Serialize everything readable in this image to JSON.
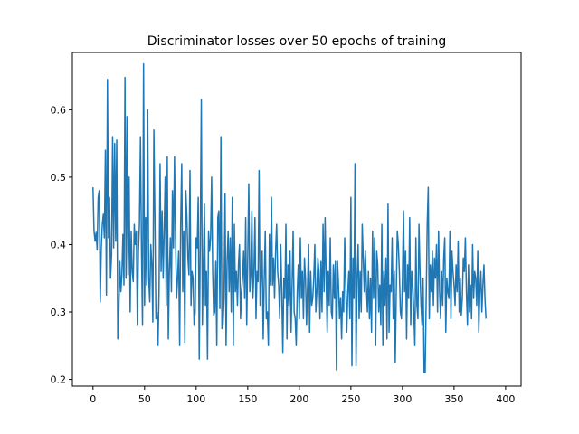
{
  "chart_data": {
    "type": "line",
    "title": "Discriminator losses over 50 epochs of training",
    "xlabel": "",
    "ylabel": "",
    "xlim": [
      -20,
      415
    ],
    "ylim": [
      0.19,
      0.685
    ],
    "x_ticks": [
      0,
      50,
      100,
      150,
      200,
      250,
      300,
      350,
      400
    ],
    "y_ticks": [
      0.2,
      0.3,
      0.4,
      0.5,
      0.6
    ],
    "grid": false,
    "colors": {
      "line": "#1f77b4"
    },
    "series": [
      {
        "x_start": 0,
        "x_step": 1,
        "values": [
          0.485,
          0.42,
          0.405,
          0.418,
          0.392,
          0.47,
          0.48,
          0.315,
          0.395,
          0.43,
          0.445,
          0.41,
          0.54,
          0.325,
          0.645,
          0.41,
          0.47,
          0.35,
          0.385,
          0.56,
          0.395,
          0.55,
          0.405,
          0.555,
          0.26,
          0.3,
          0.375,
          0.33,
          0.355,
          0.415,
          0.34,
          0.648,
          0.35,
          0.59,
          0.355,
          0.5,
          0.3,
          0.42,
          0.36,
          0.345,
          0.43,
          0.4,
          0.42,
          0.28,
          0.39,
          0.43,
          0.56,
          0.39,
          0.28,
          0.668,
          0.31,
          0.44,
          0.34,
          0.6,
          0.35,
          0.315,
          0.4,
          0.37,
          0.285,
          0.57,
          0.44,
          0.29,
          0.3,
          0.25,
          0.33,
          0.52,
          0.36,
          0.45,
          0.35,
          0.42,
          0.5,
          0.31,
          0.53,
          0.26,
          0.36,
          0.41,
          0.33,
          0.48,
          0.395,
          0.53,
          0.41,
          0.32,
          0.35,
          0.39,
          0.25,
          0.43,
          0.52,
          0.33,
          0.42,
          0.255,
          0.48,
          0.44,
          0.38,
          0.355,
          0.51,
          0.31,
          0.36,
          0.35,
          0.28,
          0.3,
          0.41,
          0.395,
          0.47,
          0.23,
          0.41,
          0.615,
          0.28,
          0.37,
          0.46,
          0.31,
          0.36,
          0.23,
          0.42,
          0.39,
          0.41,
          0.5,
          0.36,
          0.295,
          0.3,
          0.375,
          0.25,
          0.44,
          0.45,
          0.305,
          0.56,
          0.275,
          0.28,
          0.32,
          0.475,
          0.25,
          0.375,
          0.42,
          0.33,
          0.41,
          0.3,
          0.47,
          0.25,
          0.43,
          0.33,
          0.36,
          0.31,
          0.37,
          0.4,
          0.29,
          0.33,
          0.35,
          0.39,
          0.32,
          0.44,
          0.28,
          0.38,
          0.49,
          0.33,
          0.355,
          0.45,
          0.32,
          0.36,
          0.44,
          0.29,
          0.36,
          0.345,
          0.51,
          0.31,
          0.35,
          0.39,
          0.26,
          0.35,
          0.42,
          0.29,
          0.3,
          0.25,
          0.415,
          0.34,
          0.47,
          0.34,
          0.38,
          0.32,
          0.39,
          0.43,
          0.36,
          0.34,
          0.29,
          0.4,
          0.33,
          0.24,
          0.35,
          0.32,
          0.43,
          0.26,
          0.37,
          0.31,
          0.39,
          0.27,
          0.34,
          0.42,
          0.3,
          0.29,
          0.25,
          0.33,
          0.37,
          0.29,
          0.41,
          0.32,
          0.36,
          0.29,
          0.38,
          0.35,
          0.28,
          0.34,
          0.4,
          0.27,
          0.36,
          0.31,
          0.32,
          0.35,
          0.4,
          0.3,
          0.33,
          0.38,
          0.36,
          0.29,
          0.375,
          0.3,
          0.43,
          0.33,
          0.44,
          0.35,
          0.27,
          0.36,
          0.31,
          0.41,
          0.3,
          0.29,
          0.37,
          0.32,
          0.375,
          0.214,
          0.375,
          0.34,
          0.29,
          0.32,
          0.26,
          0.33,
          0.3,
          0.41,
          0.34,
          0.27,
          0.33,
          0.36,
          0.29,
          0.47,
          0.22,
          0.38,
          0.32,
          0.52,
          0.22,
          0.35,
          0.4,
          0.29,
          0.36,
          0.3,
          0.43,
          0.38,
          0.33,
          0.39,
          0.34,
          0.3,
          0.36,
          0.29,
          0.35,
          0.27,
          0.42,
          0.32,
          0.41,
          0.25,
          0.39,
          0.37,
          0.3,
          0.34,
          0.28,
          0.43,
          0.25,
          0.36,
          0.31,
          0.38,
          0.26,
          0.46,
          0.27,
          0.34,
          0.33,
          0.41,
          0.29,
          0.36,
          0.225,
          0.33,
          0.42,
          0.4,
          0.36,
          0.3,
          0.29,
          0.35,
          0.45,
          0.33,
          0.39,
          0.26,
          0.37,
          0.32,
          0.44,
          0.28,
          0.36,
          0.34,
          0.3,
          0.25,
          0.41,
          0.31,
          0.29,
          0.43,
          0.36,
          0.31,
          0.28,
          0.35,
          0.21,
          0.21,
          0.32,
          0.43,
          0.485,
          0.29,
          0.37,
          0.33,
          0.39,
          0.31,
          0.38,
          0.35,
          0.4,
          0.3,
          0.42,
          0.33,
          0.29,
          0.36,
          0.31,
          0.38,
          0.41,
          0.27,
          0.35,
          0.33,
          0.32,
          0.42,
          0.29,
          0.39,
          0.36,
          0.34,
          0.31,
          0.37,
          0.33,
          0.405,
          0.3,
          0.35,
          0.295,
          0.32,
          0.38,
          0.36,
          0.41,
          0.33,
          0.28,
          0.37,
          0.3,
          0.34,
          0.29,
          0.4,
          0.32,
          0.36,
          0.35,
          0.31,
          0.39,
          0.27,
          0.33,
          0.36,
          0.3,
          0.34,
          0.37,
          0.32,
          0.29
        ]
      }
    ]
  }
}
